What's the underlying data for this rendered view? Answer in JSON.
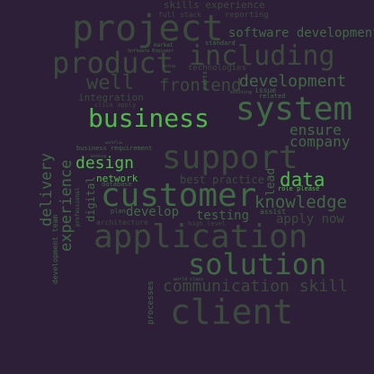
{
  "palette": {
    "background": "#2e1f38",
    "dark": "#3b4a3d",
    "mid": "#3f6a43",
    "bright": "#4fb94a"
  },
  "words": {
    "skills_experience": "skills experience",
    "full_stack": "full stack",
    "reporting": "reporting",
    "project": "project",
    "software_development": "software development",
    "standard": "standard",
    "market": "market",
    "software_engineer": "Software Engineer",
    "product": "product",
    "including": "including",
    "define": "define",
    "technologies": "technologies",
    "parts": "parts",
    "well": "well",
    "frontend": "frontend",
    "development": "development",
    "integration": "integration",
    "issue": "issue",
    "existing": "existing",
    "related": "related",
    "click_apply": "click apply",
    "business": "business",
    "system": "system",
    "ensure": "ensure",
    "company": "company",
    "workflow": "workflow",
    "business_requirement": "business requirement",
    "banking": "banking",
    "design": "design",
    "support": "support",
    "delivery": "delivery",
    "experience": "experience",
    "network": "network",
    "best_practice": "best practice",
    "lead": "lead",
    "data": "data",
    "role_please": "role please",
    "digital": "digital",
    "professional": "professional",
    "database": "database",
    "customer": "customer",
    "knowledge": "knowledge",
    "develop": "develop",
    "plan": "plan",
    "testing": "testing",
    "assist": "assist",
    "apply_now": "apply now",
    "architecture": "architecture",
    "high_level": "high level",
    "application": "application",
    "development_team": "development team",
    "solution": "solution",
    "world_class": "world class",
    "communication_skill": "communication skill",
    "processes": "processes",
    "client": "client"
  }
}
